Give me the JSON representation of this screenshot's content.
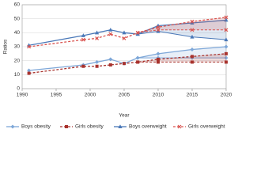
{
  "chart_data": {
    "type": "line",
    "x_label": "Year",
    "y_label": "Ratios",
    "x": [
      1991,
      1999,
      2001,
      2003,
      2005,
      2007,
      2010,
      2015,
      2020
    ],
    "xlim": [
      1990,
      2020
    ],
    "xticks": [
      1990,
      1995,
      2000,
      2005,
      2010,
      2015,
      2020
    ],
    "ylim": [
      0,
      60
    ],
    "yticks": [
      0,
      10,
      20,
      30,
      40,
      50,
      60
    ],
    "grid": true,
    "legend": "bottom",
    "series": [
      {
        "name": "Boys obesity",
        "color": "#7ea7d8",
        "marker": "diamond",
        "dash": false,
        "values": [
          13,
          17,
          19,
          21,
          18,
          22,
          25,
          28,
          30
        ],
        "lower": [
          null,
          null,
          null,
          null,
          null,
          22,
          22,
          22,
          22
        ]
      },
      {
        "name": "Girls obesity",
        "color": "#a8322d",
        "marker": "square",
        "dash": true,
        "values": [
          11,
          16,
          16,
          17,
          18,
          19,
          21,
          23,
          25
        ],
        "lower": [
          null,
          null,
          null,
          null,
          null,
          19,
          19,
          19,
          19
        ]
      },
      {
        "name": "Boys overweight",
        "color": "#4a78b8",
        "marker": "triangle",
        "dash": false,
        "values": [
          31,
          38,
          40,
          42,
          40,
          39,
          45,
          47,
          49
        ],
        "lower": [
          null,
          null,
          null,
          null,
          null,
          39,
          41,
          37,
          35
        ]
      },
      {
        "name": "Girls overweight",
        "color": "#d9534f",
        "marker": "x",
        "dash": true,
        "values": [
          30,
          35,
          36,
          39,
          36,
          40,
          44,
          48,
          51
        ],
        "lower": [
          null,
          null,
          null,
          null,
          null,
          40,
          42,
          42,
          42
        ]
      }
    ]
  }
}
